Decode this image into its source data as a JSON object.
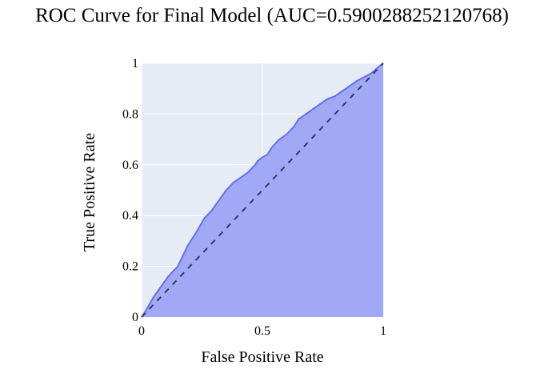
{
  "chart_data": {
    "type": "area",
    "title": "ROC Curve for Final Model (AUC=0.5900288252120768)",
    "xlabel": "False Positive Rate",
    "ylabel": "True Positive Rate",
    "xlim": [
      0,
      1
    ],
    "ylim": [
      0,
      1
    ],
    "x_ticks": [
      {
        "value": 0,
        "label": "0"
      },
      {
        "value": 0.5,
        "label": "0.5"
      },
      {
        "value": 1,
        "label": "1"
      }
    ],
    "y_ticks": [
      {
        "value": 0,
        "label": "0"
      },
      {
        "value": 0.2,
        "label": "0.2"
      },
      {
        "value": 0.4,
        "label": "0.4"
      },
      {
        "value": 0.6,
        "label": "0.6"
      },
      {
        "value": 0.8,
        "label": "0.8"
      },
      {
        "value": 1,
        "label": "1"
      }
    ],
    "grid": true,
    "legend": "none",
    "series": [
      {
        "kind": "roc",
        "x": [
          0,
          0.02,
          0.05,
          0.08,
          0.11,
          0.13,
          0.15,
          0.17,
          0.19,
          0.21,
          0.23,
          0.26,
          0.29,
          0.32,
          0.35,
          0.38,
          0.41,
          0.44,
          0.47,
          0.48,
          0.5,
          0.52,
          0.54,
          0.57,
          0.6,
          0.63,
          0.65,
          0.68,
          0.71,
          0.74,
          0.77,
          0.8,
          0.83,
          0.86,
          0.89,
          0.92,
          0.95,
          0.98,
          1.0
        ],
        "y": [
          0,
          0.03,
          0.08,
          0.12,
          0.16,
          0.18,
          0.2,
          0.24,
          0.28,
          0.31,
          0.34,
          0.39,
          0.42,
          0.46,
          0.5,
          0.53,
          0.55,
          0.57,
          0.6,
          0.615,
          0.63,
          0.64,
          0.67,
          0.7,
          0.72,
          0.75,
          0.78,
          0.8,
          0.82,
          0.84,
          0.86,
          0.87,
          0.89,
          0.91,
          0.93,
          0.945,
          0.96,
          0.985,
          1.0
        ],
        "line_color": "#636efa",
        "fill_color": "#a1a9f7",
        "fill": "tozeroy"
      },
      {
        "kind": "chance",
        "x": [
          0,
          1
        ],
        "y": [
          0,
          1
        ],
        "line_color": "#2a3f5f",
        "dash": "dash"
      }
    ],
    "colors": {
      "plot_background": "#e5ecf6",
      "grid": "#ffffff"
    }
  }
}
